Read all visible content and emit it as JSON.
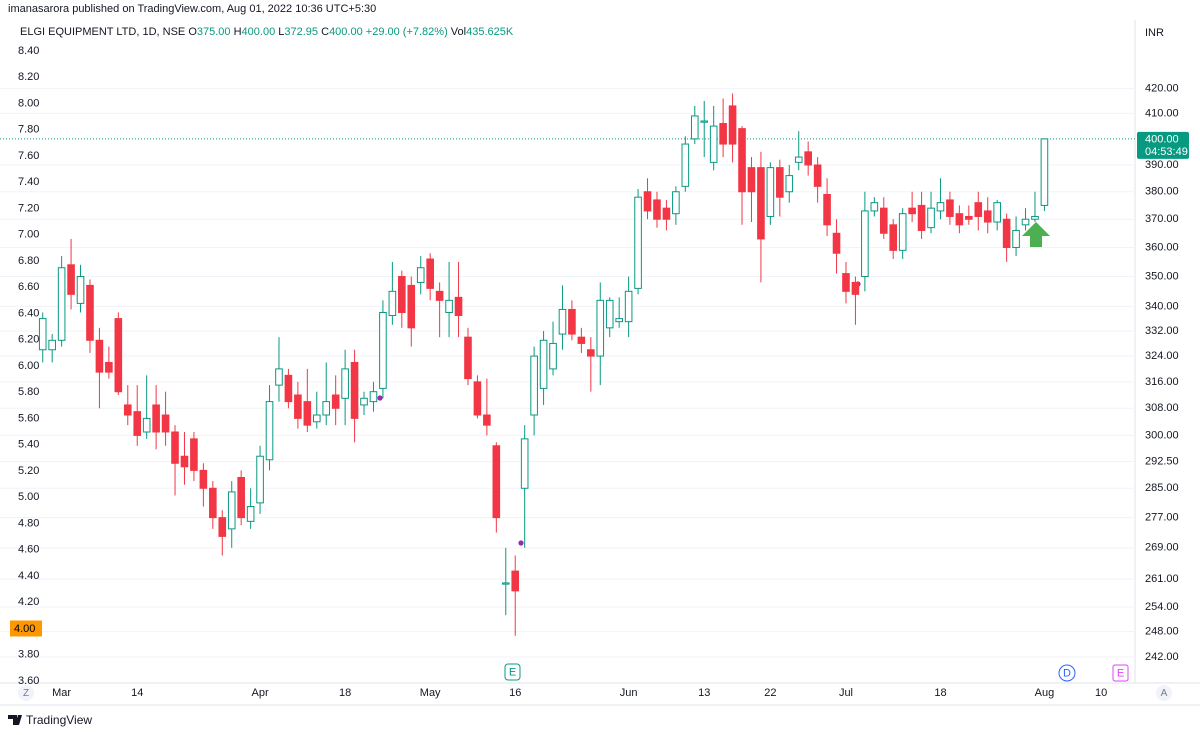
{
  "header": {
    "publisher": "imanasarora published on TradingView.com, Aug 01, 2022 10:36 UTC+5:30"
  },
  "footer": {
    "brand": "TradingView"
  },
  "chart_data": {
    "type": "candlestick",
    "symbol": "ELGI EQUIPMENT LTD, 1D, NSE",
    "legend_values": [
      {
        "label": "O",
        "value": "375.00"
      },
      {
        "label": "H",
        "value": "400.00"
      },
      {
        "label": "L",
        "value": "372.95"
      },
      {
        "label": "C",
        "value": "400.00"
      }
    ],
    "change": "+29.00 (+7.82%)",
    "volume": {
      "label": "Vol",
      "value": "435.625K"
    },
    "currency": "INR",
    "up_color": "#089981",
    "down_color": "#f23645",
    "grid": true,
    "y2_log": true,
    "categories": [
      null,
      null,
      "Mar",
      null,
      null,
      null,
      null,
      null,
      null,
      null,
      "14",
      null,
      null,
      null,
      null,
      null,
      null,
      null,
      null,
      null,
      null,
      null,
      null,
      "Apr",
      null,
      null,
      null,
      null,
      null,
      null,
      null,
      null,
      "18",
      null,
      null,
      null,
      null,
      null,
      null,
      null,
      null,
      "May",
      null,
      null,
      null,
      null,
      null,
      null,
      null,
      null,
      "16",
      null,
      null,
      null,
      null,
      null,
      null,
      null,
      null,
      null,
      null,
      null,
      "Jun",
      null,
      null,
      null,
      null,
      null,
      null,
      null,
      "13",
      null,
      null,
      null,
      null,
      null,
      null,
      "22",
      null,
      null,
      null,
      null,
      null,
      null,
      null,
      "Jul",
      null,
      null,
      null,
      null,
      null,
      null,
      null,
      null,
      null,
      "18",
      null,
      null,
      null,
      null,
      null,
      null,
      null,
      null,
      null,
      null,
      "Aug",
      null,
      null,
      null,
      null,
      null,
      "10",
      null,
      null,
      null
    ],
    "open": [
      326,
      326,
      329,
      354,
      341,
      347,
      329,
      322,
      336,
      309,
      307,
      301,
      309,
      306,
      301,
      294,
      299,
      290,
      285,
      277,
      274,
      288,
      276,
      281,
      293,
      315,
      318,
      312,
      310,
      304,
      306,
      312,
      311,
      322,
      309,
      310,
      314,
      337,
      350,
      347,
      348,
      356,
      345,
      338,
      343,
      330,
      316,
      306,
      297,
      260,
      263,
      285,
      306,
      314,
      320,
      331,
      339,
      330,
      326,
      324,
      333,
      335,
      335,
      346,
      380,
      377,
      374,
      372,
      382,
      400,
      407,
      391,
      406,
      413,
      404,
      389,
      389,
      371,
      389,
      380,
      391,
      395,
      390,
      379,
      365,
      351,
      348,
      350,
      373,
      374,
      368,
      359,
      374,
      375,
      367,
      373,
      377,
      372,
      371,
      376,
      373,
      369,
      370,
      360,
      368,
      370,
      375,
      null,
      null,
      null,
      null,
      null,
      null,
      null,
      null,
      null
    ],
    "high": [
      338,
      331,
      357,
      363,
      354,
      349,
      333,
      327,
      338,
      315,
      315,
      318,
      315,
      313,
      303,
      301,
      301,
      292,
      287,
      279,
      287,
      290,
      285,
      297,
      315,
      330,
      320,
      316,
      320,
      313,
      322,
      318,
      326,
      326,
      313,
      316,
      342,
      355,
      352,
      350,
      357,
      358,
      348,
      355,
      355,
      333,
      318,
      317,
      298,
      269,
      267,
      303,
      327,
      332,
      335,
      347,
      342,
      333,
      330,
      348,
      343,
      343,
      350,
      381,
      385,
      380,
      377,
      382,
      401,
      413,
      415,
      413,
      416,
      418,
      405,
      393,
      395,
      391,
      392,
      390,
      403,
      399,
      393,
      385,
      370,
      355,
      350,
      380,
      378,
      378,
      370,
      374,
      380,
      380,
      380,
      385,
      380,
      375,
      375,
      380,
      378,
      377,
      372,
      371,
      374,
      380,
      400,
      null,
      null,
      null,
      null,
      null,
      null,
      null,
      null,
      null
    ],
    "low": [
      322,
      322,
      327,
      339,
      338,
      325,
      308,
      317,
      312,
      303,
      297,
      299,
      296,
      297,
      283,
      286,
      287,
      280,
      274,
      267,
      269,
      275,
      274,
      278,
      290,
      310,
      308,
      302,
      301,
      302,
      303,
      303,
      303,
      298,
      306,
      307,
      311,
      334,
      333,
      327,
      344,
      342,
      330,
      330,
      330,
      315,
      305,
      300,
      273,
      252,
      247,
      269,
      300,
      309,
      318,
      326,
      329,
      325,
      313,
      315,
      330,
      333,
      330,
      344,
      370,
      367,
      366,
      368,
      380,
      398,
      393,
      388,
      393,
      391,
      368,
      369,
      348,
      368,
      371,
      376,
      388,
      386,
      376,
      364,
      351,
      341,
      334,
      345,
      371,
      363,
      356,
      356,
      369,
      363,
      365,
      370,
      368,
      365,
      368,
      366,
      365,
      366,
      355,
      357,
      366,
      369,
      372.95,
      null,
      null,
      null,
      null,
      null,
      null,
      null,
      null,
      null
    ],
    "close": [
      336,
      329,
      353,
      344,
      350,
      329,
      319,
      319,
      313,
      306,
      300,
      305,
      301,
      301,
      292,
      291,
      290,
      285,
      277,
      272,
      284,
      277,
      280,
      294,
      310,
      320,
      310,
      305,
      303,
      306,
      310,
      308,
      320,
      305,
      311,
      313,
      338,
      345,
      338,
      333,
      353,
      346,
      342,
      342,
      337,
      317,
      306,
      303,
      277,
      260,
      258,
      299,
      324,
      329,
      328,
      339,
      331,
      328,
      324,
      342,
      342,
      336,
      345,
      378,
      373,
      370,
      370,
      380,
      398,
      409,
      407,
      405,
      398,
      398,
      380,
      380,
      363,
      389,
      378,
      386,
      393,
      390,
      382,
      368,
      358,
      345,
      344,
      373,
      376,
      365,
      359,
      372,
      372,
      366,
      374,
      376,
      371,
      368,
      370,
      371,
      369,
      376,
      360,
      366,
      370,
      371,
      400,
      null,
      null,
      null,
      null,
      null,
      null,
      null,
      null,
      null
    ],
    "ylim": [
      3.6,
      8.4
    ],
    "yticks": [
      {
        "value": 3.6,
        "label": "3.60"
      },
      {
        "value": 3.8,
        "label": "3.80"
      },
      {
        "value": 4.2,
        "label": "4.20"
      },
      {
        "value": 4.4,
        "label": "4.40"
      },
      {
        "value": 4.6,
        "label": "4.60"
      },
      {
        "value": 4.8,
        "label": "4.80"
      },
      {
        "value": 5.0,
        "label": "5.00"
      },
      {
        "value": 5.2,
        "label": "5.20"
      },
      {
        "value": 5.4,
        "label": "5.40"
      },
      {
        "value": 5.6,
        "label": "5.60"
      },
      {
        "value": 5.8,
        "label": "5.80"
      },
      {
        "value": 6.0,
        "label": "6.00"
      },
      {
        "value": 6.2,
        "label": "6.20"
      },
      {
        "value": 6.4,
        "label": "6.40"
      },
      {
        "value": 6.6,
        "label": "6.60"
      },
      {
        "value": 6.8,
        "label": "6.80"
      },
      {
        "value": 7.0,
        "label": "7.00"
      },
      {
        "value": 7.2,
        "label": "7.20"
      },
      {
        "value": 7.4,
        "label": "7.40"
      },
      {
        "value": 7.6,
        "label": "7.60"
      },
      {
        "value": 7.8,
        "label": "7.80"
      },
      {
        "value": 8.0,
        "label": "8.00"
      },
      {
        "value": 8.2,
        "label": "8.20"
      },
      {
        "value": 8.4,
        "label": "8.40"
      }
    ],
    "left_marker": {
      "value": 4,
      "label": "4.00"
    },
    "y2lim": [
      236.4,
      435.6
    ],
    "y2ticks": [
      {
        "value": 242,
        "label": "242.00"
      },
      {
        "value": 248,
        "label": "248.00"
      },
      {
        "value": 254,
        "label": "254.00"
      },
      {
        "value": 261,
        "label": "261.00"
      },
      {
        "value": 269,
        "label": "269.00"
      },
      {
        "value": 277,
        "label": "277.00"
      },
      {
        "value": 285,
        "label": "285.00"
      },
      {
        "value": 292.5,
        "label": "292.50"
      },
      {
        "value": 300,
        "label": "300.00"
      },
      {
        "value": 308,
        "label": "308.00"
      },
      {
        "value": 316,
        "label": "316.00"
      },
      {
        "value": 324,
        "label": "324.00"
      },
      {
        "value": 332,
        "label": "332.00"
      },
      {
        "value": 340,
        "label": "340.00"
      },
      {
        "value": 350,
        "label": "350.00"
      },
      {
        "value": 360,
        "label": "360.00"
      },
      {
        "value": 370,
        "label": "370.00"
      },
      {
        "value": 380,
        "label": "380.00"
      },
      {
        "value": 390,
        "label": "390.00"
      },
      {
        "value": 410,
        "label": "410.00"
      },
      {
        "value": 420,
        "label": "420.00"
      }
    ],
    "last_price": {
      "value": 400,
      "label": "400.00",
      "countdown": "04:53:49"
    },
    "event_markers": [
      "E",
      "D",
      "E"
    ],
    "axis_buttons": [
      "Z",
      "A"
    ]
  }
}
